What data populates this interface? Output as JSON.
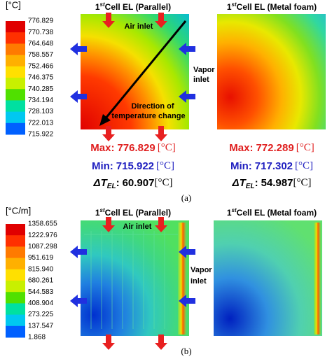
{
  "panel_a": {
    "label": "(a)",
    "unit": "[°C]",
    "colorbar_labels": [
      "776.829",
      "770.738",
      "764.648",
      "758.557",
      "752.466",
      "746.375",
      "740.285",
      "734.194",
      "728.103",
      "722.013",
      "715.922"
    ],
    "plots": [
      {
        "title": {
          "ordinal": "1",
          "suffix": "st",
          "text": "Cell EL (Parallel)"
        },
        "air_inlet": "Air inlet",
        "vapor_inlet": [
          "Vapor",
          "inlet"
        ],
        "direction": [
          "Direction of",
          "temperature change"
        ],
        "stats": {
          "max_label": "Max:",
          "max": "776.829",
          "min_label": "Min:",
          "min": "715.922",
          "unit": "[°C]",
          "delta_symbol": "ΔT",
          "delta_sub": "EL",
          "delta_sep": ":",
          "delta": "60.907"
        }
      },
      {
        "title": {
          "ordinal": "1",
          "suffix": "st",
          "text": "Cell EL (Metal foam)"
        },
        "stats": {
          "max_label": "Max:",
          "max": "772.289",
          "min_label": "Min:",
          "min": "717.302",
          "unit": "[°C]",
          "delta_symbol": "ΔT",
          "delta_sub": "EL",
          "delta_sep": ":",
          "delta": "54.987"
        }
      }
    ]
  },
  "panel_b": {
    "label": "(b)",
    "unit": "[°C/m]",
    "colorbar_labels": [
      "1358.655",
      "1222.976",
      "1087.298",
      "951.619",
      "815.940",
      "680.261",
      "544.583",
      "408.904",
      "273.225",
      "137.547",
      "1.868"
    ],
    "plots": [
      {
        "title": {
          "ordinal": "1",
          "suffix": "st",
          "text": "Cell EL (Parallel)"
        },
        "air_inlet": "Air inlet",
        "vapor_inlet": [
          "Vapor",
          "inlet"
        ]
      },
      {
        "title": {
          "ordinal": "1",
          "suffix": "st",
          "text": "Cell EL (Metal foam)"
        }
      }
    ]
  }
}
